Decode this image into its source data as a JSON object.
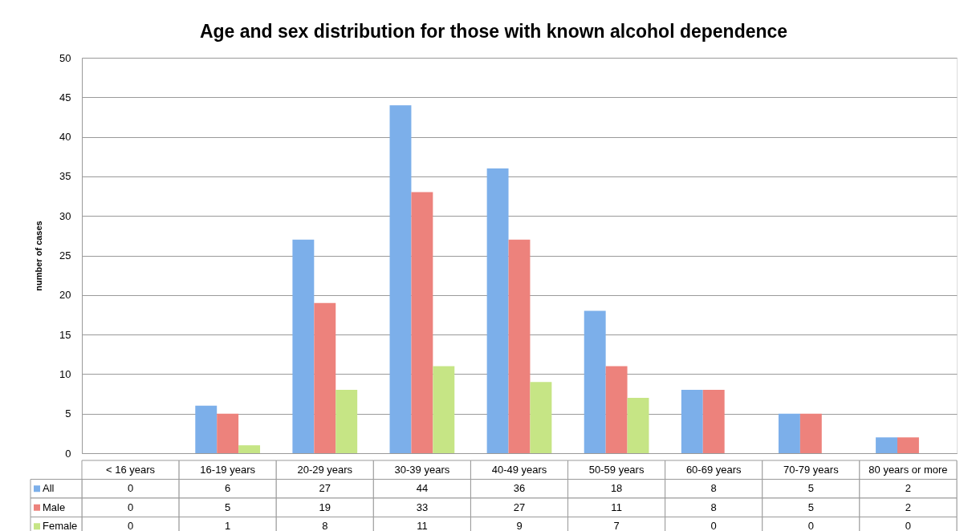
{
  "chart_data": {
    "type": "bar",
    "title": "Age and sex distribution for those with known alcohol dependence",
    "ylabel": "number of cases",
    "categories": [
      "< 16 years",
      "16-19 years",
      "20-29 years",
      "30-39 years",
      "40-49 years",
      "50-59 years",
      "60-69 years",
      "70-79 years",
      "80 years or more"
    ],
    "series": [
      {
        "name": "All",
        "color": "#7cafea",
        "values": [
          0,
          6,
          27,
          44,
          36,
          18,
          8,
          5,
          2
        ]
      },
      {
        "name": "Male",
        "color": "#ed827c",
        "values": [
          0,
          5,
          19,
          33,
          27,
          11,
          8,
          5,
          2
        ]
      },
      {
        "name": "Female",
        "color": "#c6e585",
        "values": [
          0,
          1,
          8,
          11,
          9,
          7,
          0,
          0,
          0
        ]
      }
    ],
    "ylim": [
      0,
      50
    ],
    "yticks": [
      0,
      5,
      10,
      15,
      20,
      25,
      30,
      35,
      40,
      45,
      50
    ],
    "grid": "y",
    "legend": "bottom left",
    "data_labels": true
  }
}
